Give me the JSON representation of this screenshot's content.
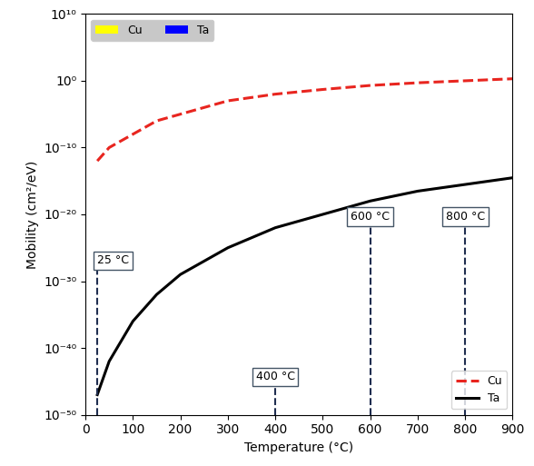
{
  "chart_data": {
    "type": "line",
    "x_label": "Temperature (°C)",
    "y_label": "Mobility (cm²/eV)",
    "log": "y",
    "legend": "lower right",
    "xlim": [
      0,
      900
    ],
    "xticks": [
      0,
      100,
      200,
      300,
      400,
      500,
      600,
      700,
      800,
      900
    ],
    "ylim": [
      1e-50,
      10000000000.0
    ],
    "yticks": [
      {
        "value": 1e-50,
        "label": "10⁻⁵⁰"
      },
      {
        "value": 1e-40,
        "label": "10⁻⁴⁰"
      },
      {
        "value": 1e-30,
        "label": "10⁻³⁰"
      },
      {
        "value": 1e-20,
        "label": "10⁻²⁰"
      },
      {
        "value": 1e-10,
        "label": "10⁻¹⁰"
      },
      {
        "value": 1,
        "label": "10⁰"
      },
      {
        "value": 10000000000.0,
        "label": "10¹⁰"
      }
    ],
    "x": [
      25,
      50,
      100,
      150,
      200,
      300,
      400,
      500,
      600,
      700,
      800,
      900
    ],
    "series": [
      {
        "name": "Cu",
        "color": "#e8251f",
        "line_style": "dashed",
        "values": [
          1e-12,
          1e-10,
          1e-08,
          1e-06,
          1e-05,
          0.001,
          0.01,
          0.05,
          0.2,
          0.5,
          1.0,
          2.0
        ]
      },
      {
        "name": "Ta",
        "color": "#000000",
        "line_style": "solid",
        "values": [
          1e-47,
          1e-42,
          1e-36,
          1e-32,
          1e-29,
          1e-25,
          1e-22,
          1e-20,
          1e-18,
          3e-17,
          3e-16,
          3e-15
        ]
      }
    ],
    "materials": [
      {
        "name": "Cu",
        "color": "#ffff00"
      },
      {
        "name": "Ta",
        "color": "#0000ff"
      }
    ],
    "annotations": [
      {
        "text": "25 °C",
        "x": 25
      },
      {
        "text": "400 °C",
        "x": 400
      },
      {
        "text": "600 °C",
        "x": 600
      },
      {
        "text": "800 °C",
        "x": 800
      }
    ]
  }
}
